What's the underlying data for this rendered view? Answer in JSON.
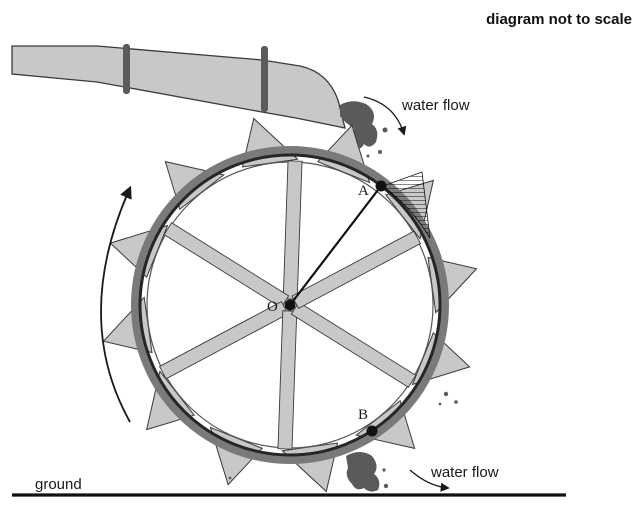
{
  "note": "diagram not to scale",
  "labels": {
    "water_flow_top": "water flow",
    "water_flow_bottom": "water flow",
    "ground": "ground",
    "point_a": "A",
    "point_b": "B",
    "point_o": "O"
  },
  "colors": {
    "structure_fill": "#c8c8c8",
    "outline": "#3a3a3a",
    "rim": "#262626",
    "ground": "#111111"
  }
}
